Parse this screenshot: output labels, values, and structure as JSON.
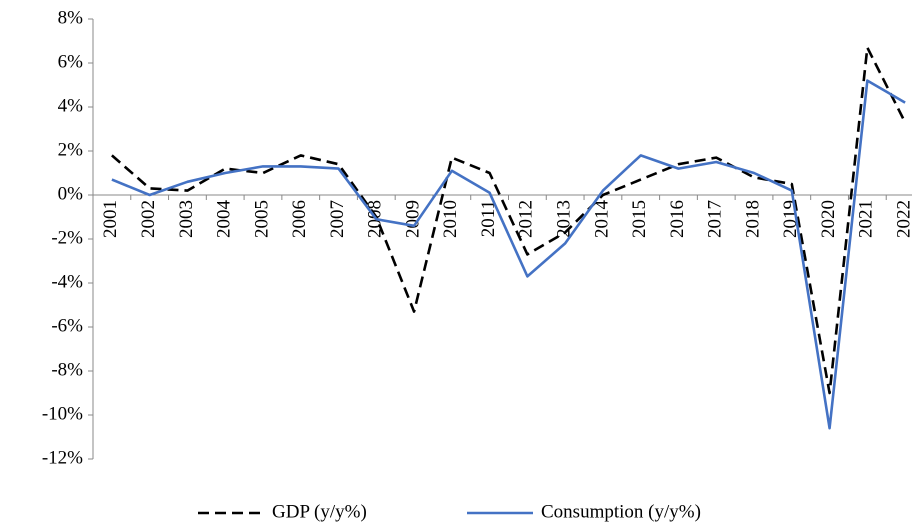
{
  "chart_data": {
    "type": "line",
    "categories": [
      "2001",
      "2002",
      "2003",
      "2004",
      "2005",
      "2006",
      "2007",
      "2008",
      "2009",
      "2010",
      "2011",
      "2012",
      "2013",
      "2014",
      "2015",
      "2016",
      "2017",
      "2018",
      "2019",
      "2020",
      "2021",
      "2022"
    ],
    "series": [
      {
        "name": "GDP (y/y%)",
        "color": "#000000",
        "dashed": true,
        "values": [
          1.8,
          0.3,
          0.2,
          1.2,
          1.0,
          1.8,
          1.4,
          -1.0,
          -5.3,
          1.7,
          1.0,
          -2.7,
          -1.7,
          0.0,
          0.7,
          1.4,
          1.7,
          0.8,
          0.5,
          -9.0,
          6.7,
          3.3
        ]
      },
      {
        "name": "Consumption (y/y%)",
        "color": "#4472c4",
        "dashed": false,
        "values": [
          0.7,
          0.0,
          0.6,
          1.0,
          1.3,
          1.3,
          1.2,
          -1.1,
          -1.4,
          1.1,
          0.1,
          -3.7,
          -2.2,
          0.2,
          1.8,
          1.2,
          1.5,
          1.0,
          0.2,
          -10.6,
          5.2,
          4.2
        ]
      }
    ],
    "ylim": [
      -12,
      8
    ],
    "yticks": [
      {
        "value": -12,
        "label": "-12%"
      },
      {
        "value": -10,
        "label": "-10%"
      },
      {
        "value": -8,
        "label": "-8%"
      },
      {
        "value": -6,
        "label": "-6%"
      },
      {
        "value": -4,
        "label": "-4%"
      },
      {
        "value": -2,
        "label": "-2%"
      },
      {
        "value": 0,
        "label": "0%"
      },
      {
        "value": 2,
        "label": "2%"
      },
      {
        "value": 4,
        "label": "4%"
      },
      {
        "value": 6,
        "label": "6%"
      },
      {
        "value": 8,
        "label": "8%"
      }
    ],
    "grid": false,
    "legend": "bottom"
  }
}
